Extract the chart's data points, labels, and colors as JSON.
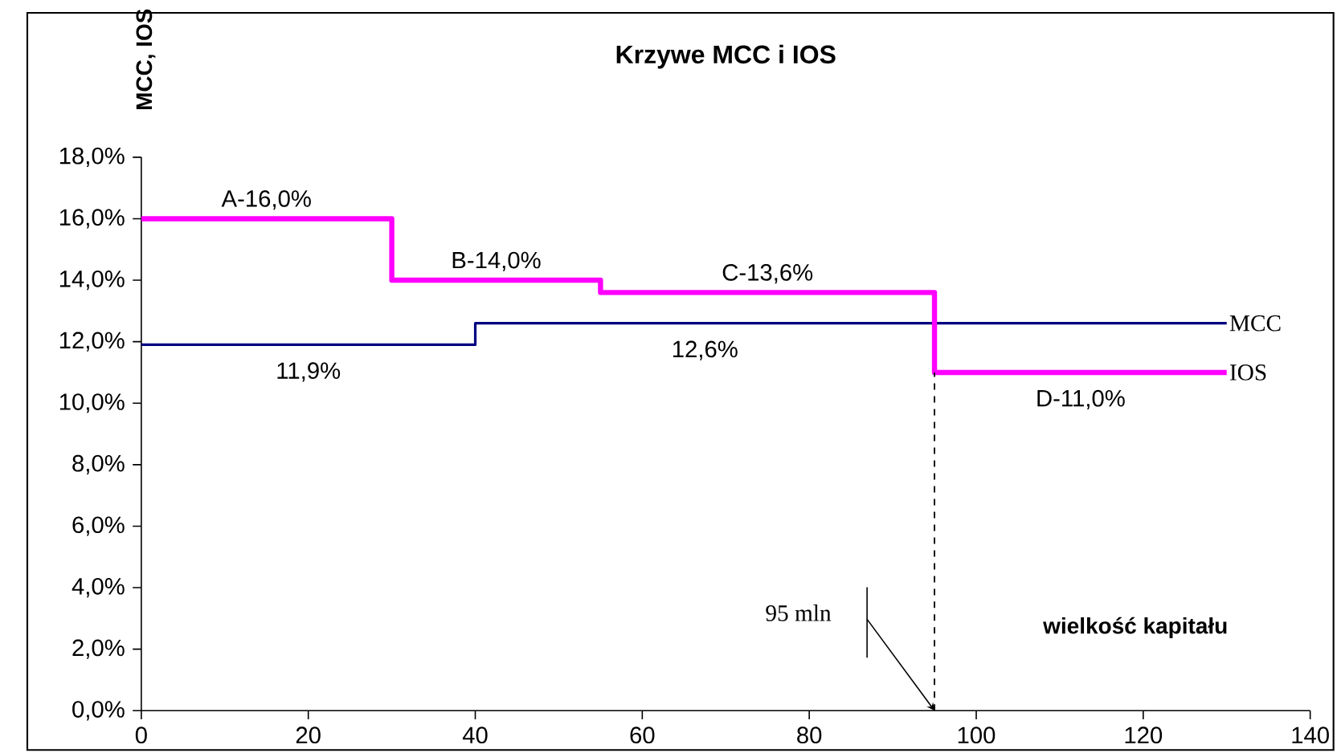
{
  "chart_data": {
    "type": "step",
    "title": "Krzywe MCC i IOS",
    "xlabel": "wielkość kapitału",
    "ylabel": "MCC, IOS",
    "xlim": [
      0,
      140
    ],
    "xticks": [
      0,
      20,
      40,
      60,
      80,
      100,
      120,
      140
    ],
    "ylim": [
      0,
      18
    ],
    "yticks": [
      {
        "value": 0,
        "label": "0,0%"
      },
      {
        "value": 2,
        "label": "2,0%"
      },
      {
        "value": 4,
        "label": "4,0%"
      },
      {
        "value": 6,
        "label": "6,0%"
      },
      {
        "value": 8,
        "label": "8,0%"
      },
      {
        "value": 10,
        "label": "10,0%"
      },
      {
        "value": 12,
        "label": "12,0%"
      },
      {
        "value": 14,
        "label": "14,0%"
      },
      {
        "value": 16,
        "label": "16,0%"
      },
      {
        "value": 18,
        "label": "18,0%"
      }
    ],
    "series": [
      {
        "name": "MCC",
        "color": "#000080",
        "x": [
          0,
          40,
          130
        ],
        "values": [
          11.9,
          12.6,
          12.6
        ]
      },
      {
        "name": "IOS",
        "color": "#ff00ff",
        "x": [
          0,
          30,
          55,
          95,
          130
        ],
        "values": [
          16,
          14,
          13.6,
          11,
          11
        ]
      }
    ],
    "ref_lines": [
      {
        "axis": "x",
        "value": 95,
        "line_style": "dashed"
      }
    ],
    "annotations": [
      {
        "text": "A-16,0%",
        "x": 15,
        "y": 16
      },
      {
        "text": "B-14,0%",
        "x": 42.5,
        "y": 14
      },
      {
        "text": "C-13,6%",
        "x": 75,
        "y": 13.6
      },
      {
        "text": "D-11,0%",
        "x": 112.5,
        "y": 11
      },
      {
        "text": "11,9%",
        "x": 20,
        "y": 11.9
      },
      {
        "text": "12,6%",
        "x": 67.5,
        "y": 12.6
      },
      "95 mln"
    ]
  }
}
